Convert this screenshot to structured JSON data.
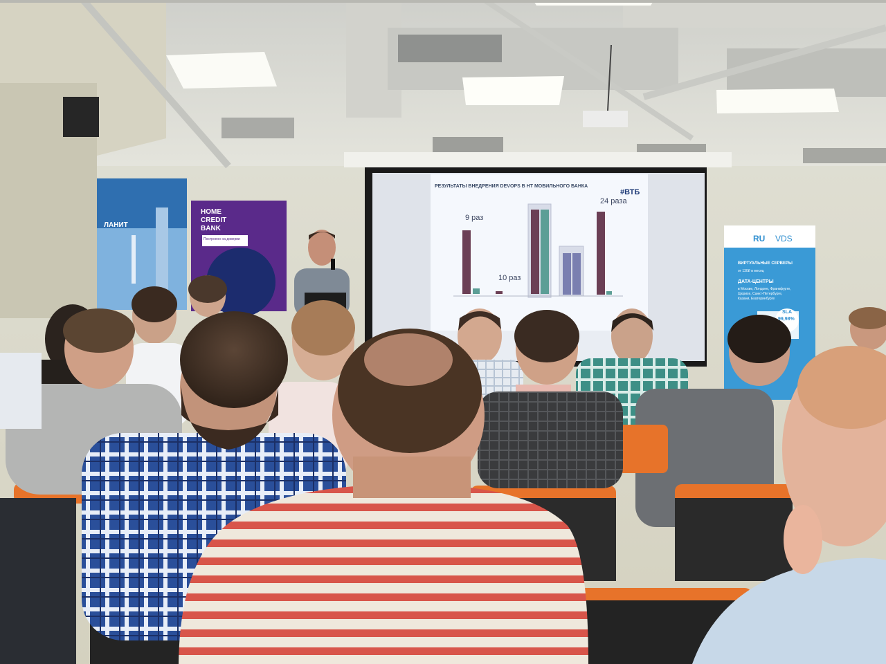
{
  "slide": {
    "title": "РЕЗУЛЬТАТЫ ВНЕДРЕНИЯ DEVOPS В НТ МОБИЛЬНОГО БАНКА",
    "logo": "#ВТБ",
    "annotations": [
      "9 раз",
      "10 раз",
      "24 раза"
    ],
    "accent_color": "#6b3f55"
  },
  "banners": {
    "lanit": {
      "name": "ЛАНИТ",
      "color": "#2f6fb0"
    },
    "home_credit": {
      "line1": "HOME",
      "line2": "CREDIT",
      "line3": "BANK",
      "tagline": "Построено на доверии",
      "color": "#5a2a8a"
    },
    "ruvds": {
      "logo_ru": "RU",
      "logo_vds": "VDS",
      "heading1": "ВИРТУАЛЬНЫЕ СЕРВЕРЫ",
      "price": "от 130₽ в месяц",
      "heading2": "ДАТА-ЦЕНТРЫ",
      "cities1": "в Москве, Лондоне, Франкфурте,",
      "cities2": "Цюрихе, Санкт-Петербурге,",
      "cities3": "Казани, Екатеринбурге",
      "sla_label": "SLA",
      "sla_value": "99,98%",
      "color": "#3a9ad6"
    }
  }
}
